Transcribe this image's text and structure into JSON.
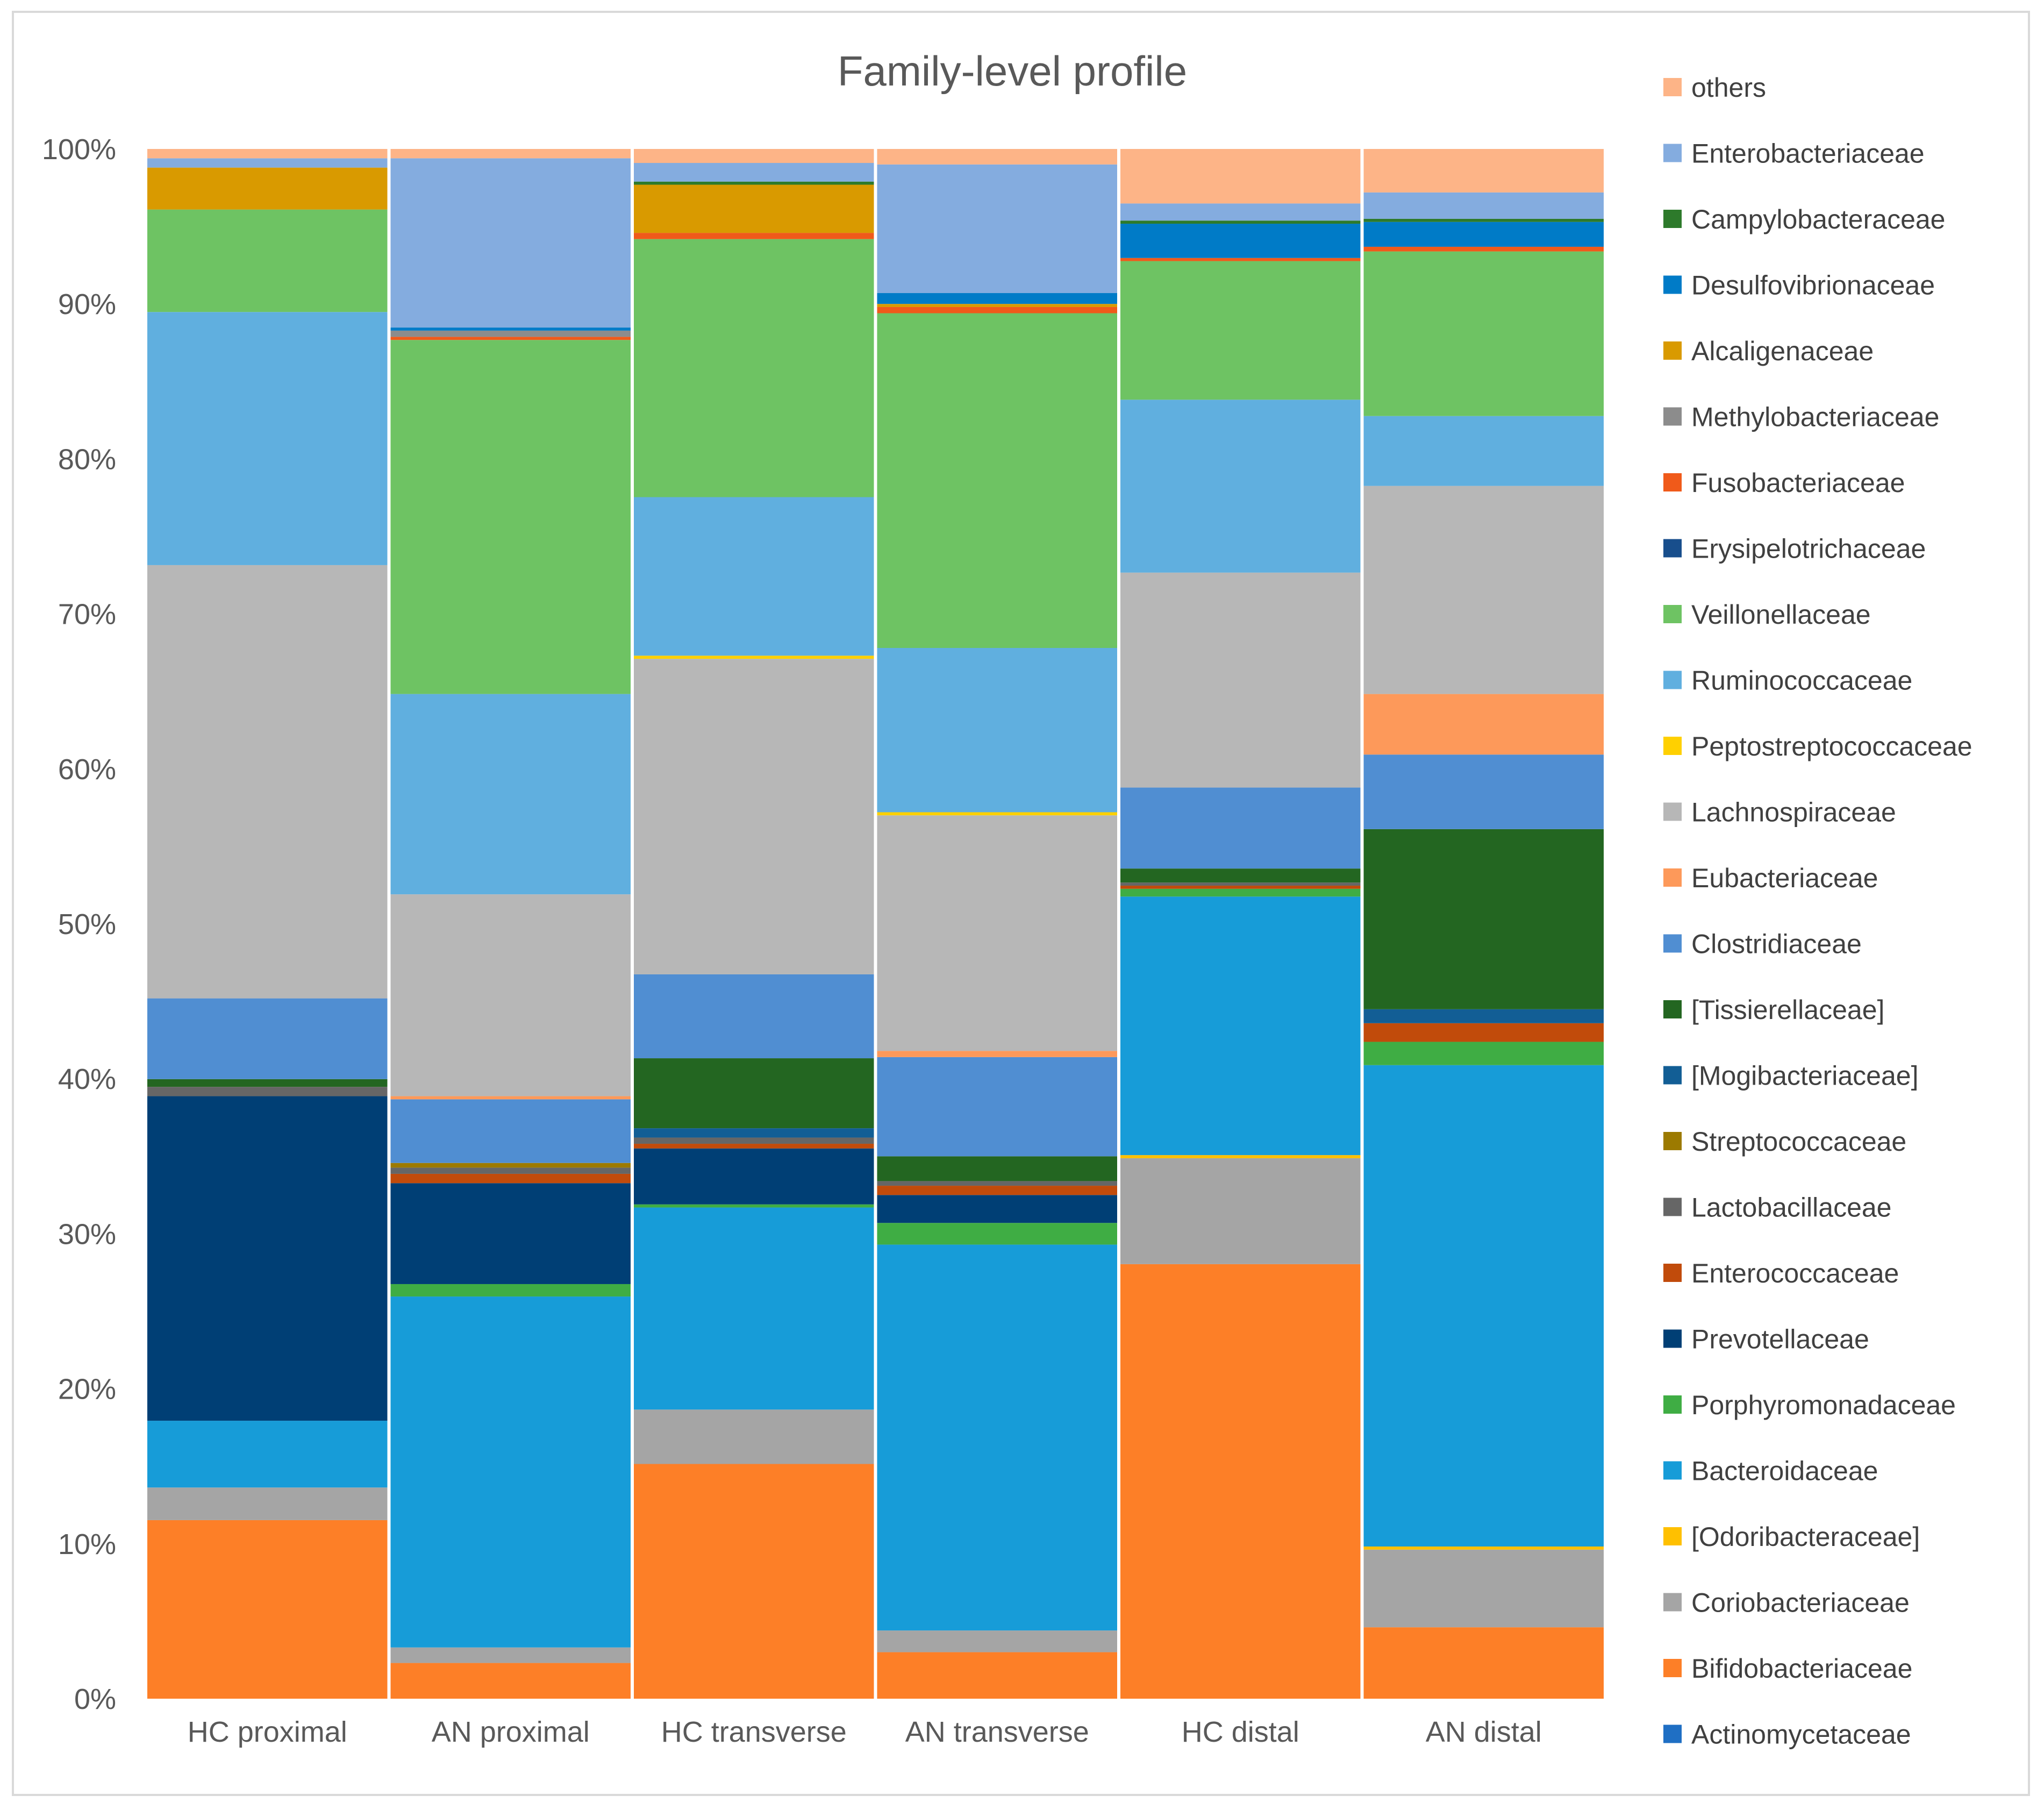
{
  "chart_data": {
    "type": "bar",
    "stacked": "percent",
    "title": "Family-level profile",
    "xlabel": "",
    "ylabel": "",
    "ylim": [
      0,
      100
    ],
    "y_ticks": [
      "0%",
      "10%",
      "20%",
      "30%",
      "40%",
      "50%",
      "60%",
      "70%",
      "80%",
      "90%",
      "100%"
    ],
    "categories": [
      "HC proximal",
      "AN proximal",
      "HC transverse",
      "AN transverse",
      "HC distal",
      "AN distal"
    ],
    "legend_position": "right",
    "series": [
      {
        "name": "Actinomycetaceae",
        "color": "#1f6fc4",
        "values": [
          0,
          0,
          0,
          0,
          0,
          0
        ]
      },
      {
        "name": "Bifidobacteriaceae",
        "color": "#fd7f27",
        "values": [
          11.5,
          2.3,
          15.1,
          3.0,
          27.9,
          4.6
        ]
      },
      {
        "name": "Coriobacteriaceae",
        "color": "#a5a5a5",
        "values": [
          2.1,
          1.0,
          3.5,
          1.4,
          6.8,
          5.0
        ]
      },
      {
        "name": "[Odoribacteraceae]",
        "color": "#ffc000",
        "values": [
          0,
          0,
          0,
          0,
          0.2,
          0.2
        ]
      },
      {
        "name": "Bacteroidaceae",
        "color": "#179cd8",
        "values": [
          4.3,
          22.6,
          13.0,
          24.9,
          16.6,
          31.0
        ]
      },
      {
        "name": "Porphyromonadaceae",
        "color": "#3fad44",
        "values": [
          0,
          0.8,
          0.2,
          1.4,
          0.5,
          1.5
        ]
      },
      {
        "name": "Prevotellaceae",
        "color": "#003f75",
        "values": [
          20.9,
          6.5,
          3.6,
          1.8,
          0,
          0
        ]
      },
      {
        "name": "Enterococcaceae",
        "color": "#c14b0b",
        "values": [
          0,
          0.6,
          0.3,
          0.6,
          0.2,
          1.2
        ]
      },
      {
        "name": "Lactobacillaceae",
        "color": "#666666",
        "values": [
          0.6,
          0.4,
          0.4,
          0.3,
          0.2,
          0
        ]
      },
      {
        "name": "Streptococcaceae",
        "color": "#9c7a00",
        "values": [
          0,
          0.3,
          0,
          0,
          0,
          0
        ]
      },
      {
        "name": "[Mogibacteriaceae]",
        "color": "#125e95",
        "values": [
          0,
          0,
          0.6,
          0,
          0,
          0.9
        ]
      },
      {
        "name": "[Tissierellaceae]",
        "color": "#236621",
        "values": [
          0.5,
          0,
          4.5,
          1.6,
          0.9,
          11.6
        ]
      },
      {
        "name": "Clostridiaceae",
        "color": "#508ed2",
        "values": [
          5.2,
          4.1,
          5.4,
          6.4,
          5.2,
          4.8
        ]
      },
      {
        "name": "Eubacteriaceae",
        "color": "#fd995a",
        "values": [
          0,
          0.2,
          0,
          0.4,
          0,
          3.9
        ]
      },
      {
        "name": "Lachnospiraceae",
        "color": "#b7b7b7",
        "values": [
          27.9,
          13.0,
          20.3,
          15.2,
          13.8,
          13.4
        ]
      },
      {
        "name": "Peptostreptococcaceae",
        "color": "#ffd000",
        "values": [
          0,
          0,
          0.2,
          0.2,
          0,
          0
        ]
      },
      {
        "name": "Ruminococcaceae",
        "color": "#60afdf",
        "values": [
          16.3,
          12.9,
          10.2,
          10.6,
          11.1,
          4.5
        ]
      },
      {
        "name": "Veillonellaceae",
        "color": "#6ec363",
        "values": [
          6.6,
          22.8,
          16.6,
          21.6,
          8.9,
          10.6
        ]
      },
      {
        "name": "Erysipelotrichaceae",
        "color": "#184e8c",
        "values": [
          0,
          0,
          0,
          0,
          0,
          0
        ]
      },
      {
        "name": "Fusobacteriaceae",
        "color": "#f05a1a",
        "values": [
          0,
          0.2,
          0.4,
          0.4,
          0.2,
          0.3
        ]
      },
      {
        "name": "Methylobacteriaceae",
        "color": "#8c8c8c",
        "values": [
          0,
          0.4,
          0,
          0,
          0,
          0
        ]
      },
      {
        "name": "Alcaligenaceae",
        "color": "#d99a00",
        "values": [
          2.7,
          0,
          3.1,
          0.2,
          0,
          0
        ]
      },
      {
        "name": "Desulfovibrionaceae",
        "color": "#007bc7",
        "values": [
          0,
          0.2,
          0,
          0.7,
          2.2,
          1.6
        ]
      },
      {
        "name": "Campylobacteraceae",
        "color": "#2d7a2b",
        "values": [
          0,
          0,
          0.2,
          0,
          0.2,
          0.2
        ]
      },
      {
        "name": "Enterobacteriaceae",
        "color": "#84acdf",
        "values": [
          0.6,
          10.9,
          1.2,
          8.3,
          1.1,
          1.7
        ]
      },
      {
        "name": "others",
        "color": "#fdb487",
        "values": [
          0.6,
          0.6,
          0.9,
          1.0,
          3.5,
          2.8
        ]
      }
    ]
  }
}
